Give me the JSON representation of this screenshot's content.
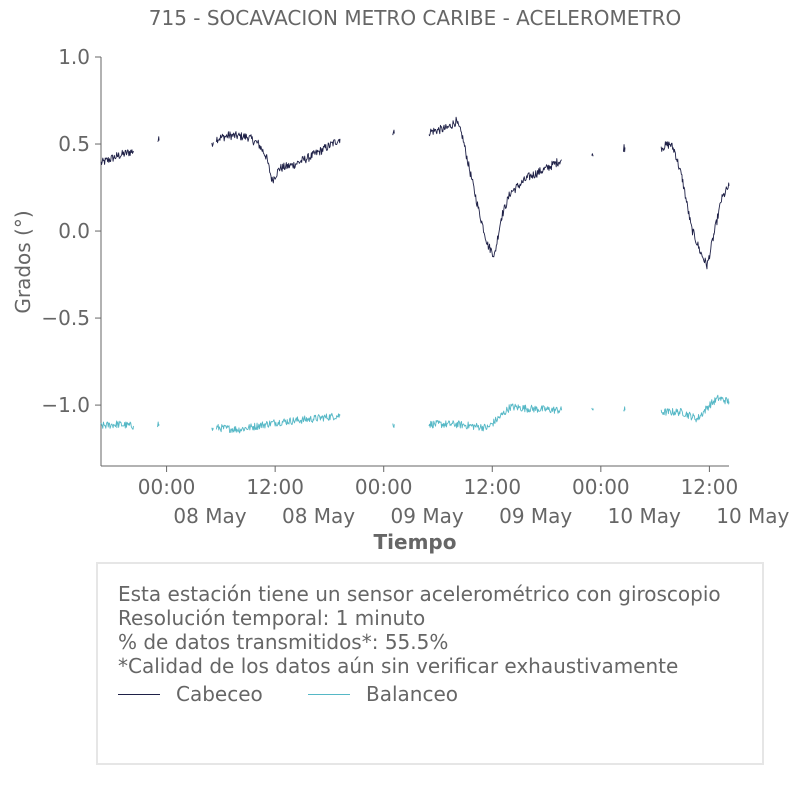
{
  "chart_data": {
    "type": "line",
    "title": "715 - SOCAVACION METRO CARIBE - ACELEROMETRO",
    "xlabel": "Tiempo",
    "ylabel": "Grados (°)",
    "ylim": [
      -1.35,
      1.0
    ],
    "xlim": [
      "2023-05-07T16:45",
      "2023-05-10T14:10"
    ],
    "grid": false,
    "x_ticks": [
      {
        "t": "2023-05-08T00:00",
        "time": "00:00",
        "date": "08 May"
      },
      {
        "t": "2023-05-08T12:00",
        "time": "12:00",
        "date": "08 May"
      },
      {
        "t": "2023-05-09T00:00",
        "time": "00:00",
        "date": "09 May"
      },
      {
        "t": "2023-05-09T12:00",
        "time": "12:00",
        "date": "09 May"
      },
      {
        "t": "2023-05-10T00:00",
        "time": "00:00",
        "date": "10 May"
      },
      {
        "t": "2023-05-10T12:00",
        "time": "12:00",
        "date": "10 May"
      }
    ],
    "y_ticks": [
      {
        "v": 1.0,
        "label": "1.0"
      },
      {
        "v": 0.5,
        "label": "0.5"
      },
      {
        "v": 0.0,
        "label": "0.0"
      },
      {
        "v": -0.5,
        "label": "−0.5"
      },
      {
        "v": -1.0,
        "label": "−1.0"
      }
    ],
    "series": [
      {
        "name": "Cabeceo",
        "color": "#1f2147",
        "noise": 0.025,
        "segments": [
          [
            [
              "2023-05-07T16:45",
              0.39
            ],
            [
              "2023-05-07T18:30",
              0.43
            ],
            [
              "2023-05-07T20:20",
              0.46
            ]
          ],
          [
            [
              "2023-05-07T23:00",
              0.52
            ],
            [
              "2023-05-07T23:10",
              0.52
            ]
          ],
          [
            [
              "2023-05-08T05:00",
              0.51
            ],
            [
              "2023-05-08T05:10",
              0.51
            ]
          ],
          [
            [
              "2023-05-08T05:30",
              0.53
            ],
            [
              "2023-05-08T07:00",
              0.55
            ],
            [
              "2023-05-08T09:00",
              0.54
            ],
            [
              "2023-05-08T10:10",
              0.5
            ],
            [
              "2023-05-08T11:00",
              0.43
            ],
            [
              "2023-05-08T11:40",
              0.29
            ],
            [
              "2023-05-08T12:30",
              0.36
            ],
            [
              "2023-05-08T14:00",
              0.38
            ],
            [
              "2023-05-08T16:00",
              0.43
            ],
            [
              "2023-05-08T18:00",
              0.49
            ],
            [
              "2023-05-08T19:10",
              0.53
            ]
          ],
          [
            [
              "2023-05-09T01:00",
              0.56
            ],
            [
              "2023-05-09T01:10",
              0.56
            ]
          ],
          [
            [
              "2023-05-09T05:00",
              0.57
            ],
            [
              "2023-05-09T07:00",
              0.59
            ],
            [
              "2023-05-09T08:00",
              0.63
            ],
            [
              "2023-05-09T08:40",
              0.55
            ],
            [
              "2023-05-09T09:30",
              0.35
            ],
            [
              "2023-05-09T10:30",
              0.12
            ],
            [
              "2023-05-09T11:30",
              -0.08
            ],
            [
              "2023-05-09T12:15",
              -0.14
            ],
            [
              "2023-05-09T13:00",
              0.08
            ],
            [
              "2023-05-09T14:00",
              0.22
            ],
            [
              "2023-05-09T16:00",
              0.31
            ],
            [
              "2023-05-09T18:00",
              0.36
            ],
            [
              "2023-05-09T19:40",
              0.41
            ]
          ],
          [
            [
              "2023-05-09T23:00",
              0.43
            ],
            [
              "2023-05-09T23:10",
              0.43
            ]
          ],
          [
            [
              "2023-05-10T02:30",
              0.48
            ],
            [
              "2023-05-10T02:40",
              0.48
            ]
          ],
          [
            [
              "2023-05-10T06:40",
              0.48
            ],
            [
              "2023-05-10T07:40",
              0.5
            ],
            [
              "2023-05-10T08:10",
              0.46
            ],
            [
              "2023-05-10T09:00",
              0.3
            ],
            [
              "2023-05-10T10:00",
              0.02
            ],
            [
              "2023-05-10T11:00",
              -0.12
            ],
            [
              "2023-05-10T11:45",
              -0.2
            ],
            [
              "2023-05-10T12:30",
              -0.02
            ],
            [
              "2023-05-10T13:20",
              0.18
            ],
            [
              "2023-05-10T14:10",
              0.26
            ]
          ]
        ]
      },
      {
        "name": "Balanceo",
        "color": "#56b8c6",
        "noise": 0.022,
        "segments": [
          [
            [
              "2023-05-07T16:45",
              -1.12
            ],
            [
              "2023-05-07T18:30",
              -1.11
            ],
            [
              "2023-05-07T20:20",
              -1.12
            ]
          ],
          [
            [
              "2023-05-07T23:00",
              -1.11
            ],
            [
              "2023-05-07T23:10",
              -1.11
            ]
          ],
          [
            [
              "2023-05-08T05:00",
              -1.14
            ],
            [
              "2023-05-08T05:10",
              -1.14
            ]
          ],
          [
            [
              "2023-05-08T05:30",
              -1.13
            ],
            [
              "2023-05-08T08:00",
              -1.14
            ],
            [
              "2023-05-08T12:00",
              -1.1
            ],
            [
              "2023-05-08T16:00",
              -1.08
            ],
            [
              "2023-05-08T19:10",
              -1.06
            ]
          ],
          [
            [
              "2023-05-09T01:00",
              -1.11
            ],
            [
              "2023-05-09T01:10",
              -1.11
            ]
          ],
          [
            [
              "2023-05-09T05:00",
              -1.11
            ],
            [
              "2023-05-09T08:00",
              -1.11
            ],
            [
              "2023-05-09T11:30",
              -1.13
            ],
            [
              "2023-05-09T13:00",
              -1.06
            ],
            [
              "2023-05-09T14:00",
              -1.01
            ],
            [
              "2023-05-09T16:00",
              -1.02
            ],
            [
              "2023-05-09T19:40",
              -1.03
            ]
          ],
          [
            [
              "2023-05-09T23:00",
              -1.02
            ],
            [
              "2023-05-09T23:10",
              -1.02
            ]
          ],
          [
            [
              "2023-05-10T02:30",
              -1.03
            ],
            [
              "2023-05-10T02:40",
              -1.03
            ]
          ],
          [
            [
              "2023-05-10T06:40",
              -1.04
            ],
            [
              "2023-05-10T09:00",
              -1.04
            ],
            [
              "2023-05-10T10:40",
              -1.08
            ],
            [
              "2023-05-10T12:00",
              -1.0
            ],
            [
              "2023-05-10T13:00",
              -0.96
            ],
            [
              "2023-05-10T14:10",
              -0.98
            ]
          ]
        ]
      }
    ]
  },
  "info": {
    "line1": "Esta estación tiene un sensor acelerométrico con giroscopio",
    "line2": "Resolución temporal: 1 minuto",
    "line3": "% de datos transmitidos*: 55.5%",
    "line4": "*Calidad de los datos aún sin verificar exhaustivamente",
    "legend": [
      {
        "label": "Cabeceo",
        "color": "#1f2147"
      },
      {
        "label": "Balanceo",
        "color": "#56b8c6"
      }
    ]
  }
}
